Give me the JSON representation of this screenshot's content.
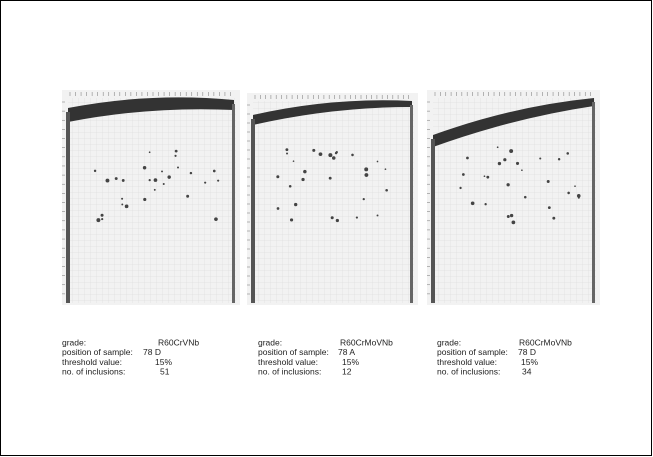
{
  "panels": [
    {
      "captions": [
        {
          "label": "grade:",
          "value": "R60CrVNb"
        },
        {
          "label": "position of sample:",
          "value": "78 D"
        },
        {
          "label": "threshold value:",
          "value": "15%"
        },
        {
          "label": "no. of inclusions:",
          "value": "51"
        }
      ]
    },
    {
      "captions": [
        {
          "label": "grade:",
          "value": "R60CrMoVNb"
        },
        {
          "label": "position of sample:",
          "value": "78 A"
        },
        {
          "label": "threshold value:",
          "value": "15%"
        },
        {
          "label": "no. of inclusions:",
          "value": "12"
        }
      ]
    },
    {
      "captions": [
        {
          "label": "grade:",
          "value": "R60CrMoVNb"
        },
        {
          "label": "position of sample:",
          "value": "78 D"
        },
        {
          "label": "threshold value:",
          "value": "15%"
        },
        {
          "label": "no. of inclusions:",
          "value": "34"
        }
      ]
    }
  ]
}
